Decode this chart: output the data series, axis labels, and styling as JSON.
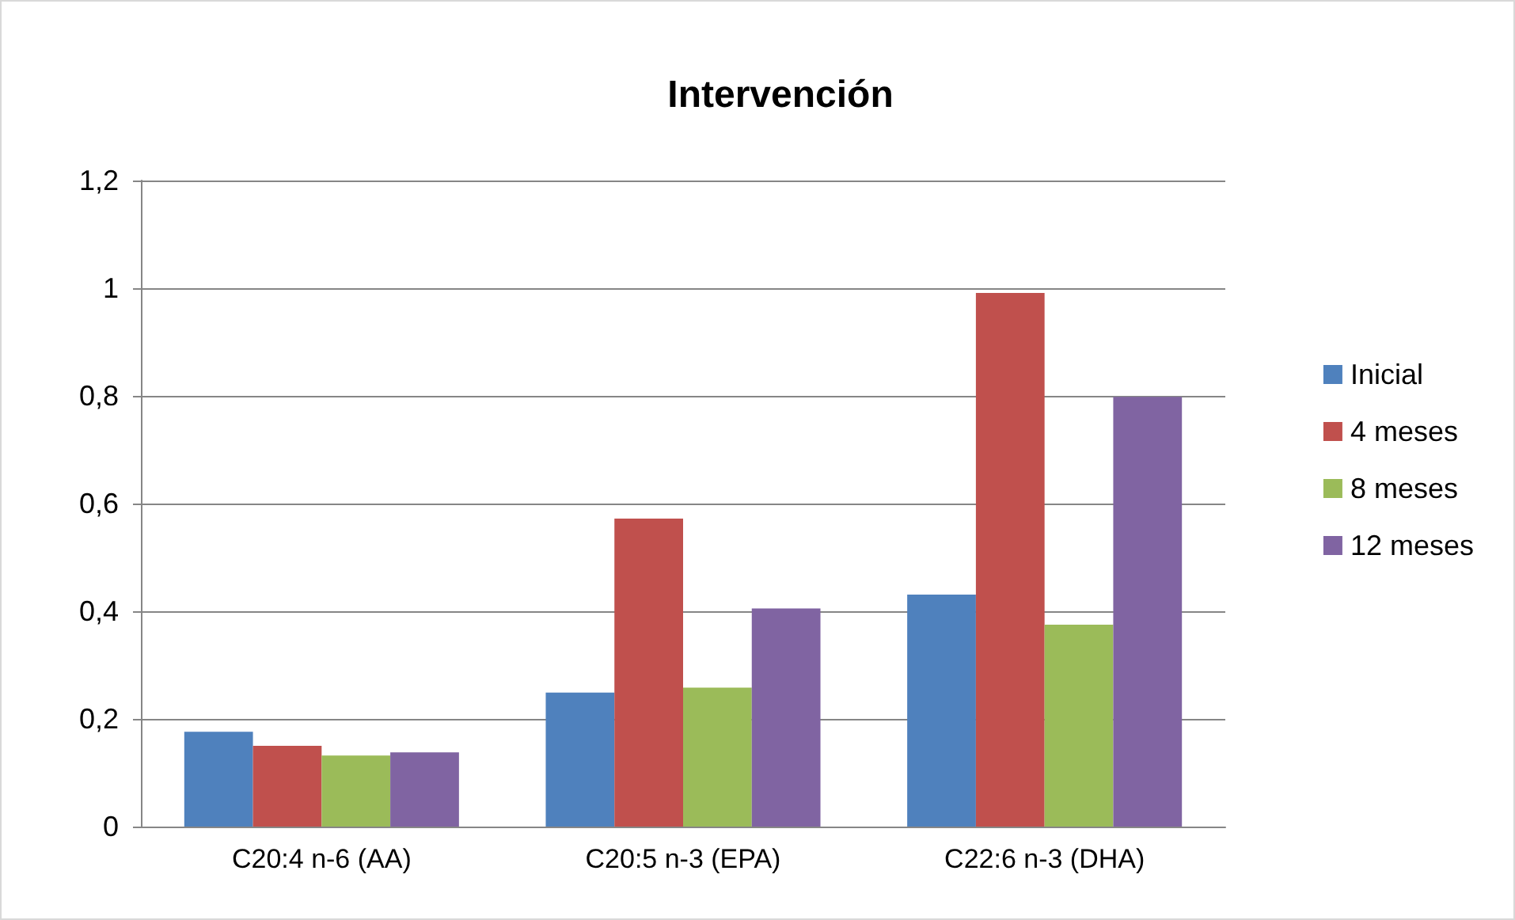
{
  "chart_data": {
    "type": "bar",
    "title": "Intervención",
    "categories": [
      "C20:4 n-6 (AA)",
      "C20:5 n-3 (EPA)",
      "C22:6 n-3 (DHA)"
    ],
    "series": [
      {
        "name": "Inicial",
        "color": "#4f81bd",
        "values": [
          0.176,
          0.249,
          0.431
        ]
      },
      {
        "name": "4 meses",
        "color": "#c0504d",
        "values": [
          0.15,
          0.572,
          0.991
        ]
      },
      {
        "name": "8 meses",
        "color": "#9bbb59",
        "values": [
          0.132,
          0.258,
          0.375
        ]
      },
      {
        "name": "12 meses",
        "color": "#8064a2",
        "values": [
          0.138,
          0.405,
          0.798
        ]
      }
    ],
    "ylim": [
      0,
      1.2
    ],
    "yticks": [
      0,
      {
        "value": 0.2,
        "label": "0,2"
      },
      {
        "value": 0.4,
        "label": "0,4"
      },
      {
        "value": 0.6,
        "label": "0,6"
      },
      {
        "value": 0.8,
        "label": "0,8"
      },
      1,
      {
        "value": 1.2,
        "label": "1,2"
      }
    ],
    "grid": "y",
    "legend": "right"
  }
}
